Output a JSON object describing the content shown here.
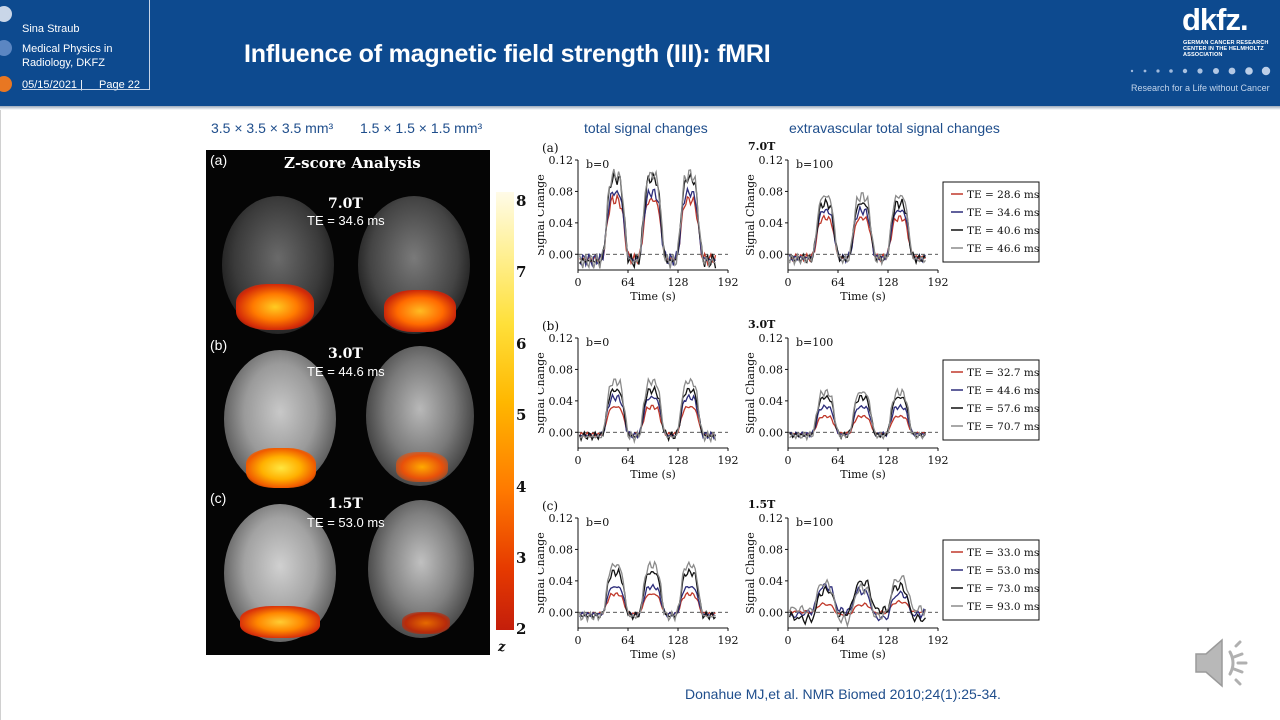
{
  "header": {
    "author": "Sina Straub",
    "department": "Medical Physics in Radiology, DKFZ",
    "date": "05/15/2021 |",
    "page": "Page 22",
    "title": "Influence of magnetic field strength (III): fMRI",
    "logo_text": "dkfz.",
    "logo_sub": "GERMAN CANCER RESEARCH CENTER IN THE HELMHOLTZ ASSOCIATION",
    "slogan": "Research for a Life without Cancer",
    "colors": {
      "header": "#0d4a8f",
      "accent_orange": "#e87722",
      "dot_blue": "#4f7fbf"
    }
  },
  "labels": {
    "res_left": "3.5 × 3.5 × 3.5 mm³",
    "res_right": "1.5 × 1.5 × 1.5 mm³",
    "total_signal": "total signal changes",
    "extravascular": "extravascular  total signal changes"
  },
  "brain_panel": {
    "title": "Z-score Analysis",
    "rows": [
      {
        "panel": "(a)",
        "field": "7.0T",
        "te": "TE = 34.6 ms"
      },
      {
        "panel": "(b)",
        "field": "3.0T",
        "te": "TE = 44.6 ms"
      },
      {
        "panel": "(c)",
        "field": "1.5T",
        "te": "TE = 53.0 ms"
      }
    ],
    "colorbar": {
      "ticks": [
        "8",
        "7",
        "6",
        "5",
        "4",
        "3",
        "2"
      ],
      "label": "z"
    }
  },
  "chart_data": [
    {
      "type": "line",
      "panel": "(a)",
      "field": "7.0T",
      "b_value": "b=0",
      "ylabel": "Signal Change",
      "xlabel": "Time (s)",
      "xticks": [
        "0",
        "64",
        "128",
        "192"
      ],
      "yticks": [
        "0.12",
        "0.08",
        "0.04",
        "0.00"
      ],
      "xlim": [
        0,
        192
      ],
      "ylim": [
        -0.02,
        0.12
      ],
      "series": [
        {
          "legend": "TE = 28.6 ms",
          "color": "#c0392b",
          "peak": 0.075
        },
        {
          "legend": "TE = 34.6 ms",
          "color": "#2c2c7a",
          "peak": 0.085
        },
        {
          "legend": "TE = 40.6 ms",
          "color": "#111111",
          "peak": 0.105
        },
        {
          "legend": "TE = 46.6 ms",
          "color": "#8a8a8a",
          "peak": 0.11
        }
      ]
    },
    {
      "type": "line",
      "panel": "",
      "field": "",
      "b_value": "b=100",
      "ylabel": "Signal Change",
      "xlabel": "Time (s)",
      "xticks": [
        "0",
        "64",
        "128",
        "192"
      ],
      "yticks": [
        "0.12",
        "0.08",
        "0.04",
        "0.00"
      ],
      "xlim": [
        0,
        192
      ],
      "ylim": [
        -0.02,
        0.12
      ],
      "series": [
        {
          "legend": "TE = 28.6 ms",
          "color": "#c0392b",
          "peak": 0.05
        },
        {
          "legend": "TE = 34.6 ms",
          "color": "#2c2c7a",
          "peak": 0.06
        },
        {
          "legend": "TE = 40.6 ms",
          "color": "#111111",
          "peak": 0.07
        },
        {
          "legend": "TE = 46.6 ms",
          "color": "#8a8a8a",
          "peak": 0.08
        }
      ]
    },
    {
      "type": "line",
      "panel": "(b)",
      "field": "3.0T",
      "b_value": "b=0",
      "ylabel": "Signal Change",
      "xlabel": "Time (s)",
      "xticks": [
        "0",
        "64",
        "128",
        "192"
      ],
      "yticks": [
        "0.12",
        "0.08",
        "0.04",
        "0.00"
      ],
      "xlim": [
        0,
        192
      ],
      "ylim": [
        -0.02,
        0.12
      ],
      "series": [
        {
          "legend": "TE = 32.7 ms",
          "color": "#c0392b",
          "peak": 0.035
        },
        {
          "legend": "TE = 44.6 ms",
          "color": "#2c2c7a",
          "peak": 0.048
        },
        {
          "legend": "TE = 57.6 ms",
          "color": "#111111",
          "peak": 0.058
        },
        {
          "legend": "TE = 70.7 ms",
          "color": "#8a8a8a",
          "peak": 0.07
        }
      ]
    },
    {
      "type": "line",
      "panel": "",
      "field": "",
      "b_value": "b=100",
      "ylabel": "Signal Change",
      "xlabel": "Time (s)",
      "xticks": [
        "0",
        "64",
        "128",
        "192"
      ],
      "yticks": [
        "0.12",
        "0.08",
        "0.04",
        "0.00"
      ],
      "xlim": [
        0,
        192
      ],
      "ylim": [
        -0.02,
        0.12
      ],
      "series": [
        {
          "legend": "TE = 32.7 ms",
          "color": "#c0392b",
          "peak": 0.022
        },
        {
          "legend": "TE = 44.6 ms",
          "color": "#2c2c7a",
          "peak": 0.035
        },
        {
          "legend": "TE = 57.6 ms",
          "color": "#111111",
          "peak": 0.048
        },
        {
          "legend": "TE = 70.7 ms",
          "color": "#8a8a8a",
          "peak": 0.055
        }
      ]
    },
    {
      "type": "line",
      "panel": "(c)",
      "field": "1.5T",
      "b_value": "b=0",
      "ylabel": "Signal Change",
      "xlabel": "Time (s)",
      "xticks": [
        "0",
        "64",
        "128",
        "192"
      ],
      "yticks": [
        "0.12",
        "0.08",
        "0.04",
        "0.00"
      ],
      "xlim": [
        0,
        192
      ],
      "ylim": [
        -0.02,
        0.12
      ],
      "series": [
        {
          "legend": "TE = 33.0 ms",
          "color": "#c0392b",
          "peak": 0.025
        },
        {
          "legend": "TE = 53.0 ms",
          "color": "#2c2c7a",
          "peak": 0.035
        },
        {
          "legend": "TE = 73.0 ms",
          "color": "#111111",
          "peak": 0.055
        },
        {
          "legend": "TE = 93.0 ms",
          "color": "#8a8a8a",
          "peak": 0.065
        }
      ]
    },
    {
      "type": "line",
      "panel": "",
      "field": "",
      "b_value": "b=100",
      "ylabel": "Signal Change",
      "xlabel": "Time (s)",
      "xticks": [
        "0",
        "64",
        "128",
        "192"
      ],
      "yticks": [
        "0.12",
        "0.08",
        "0.04",
        "0.00"
      ],
      "xlim": [
        0,
        192
      ],
      "ylim": [
        -0.02,
        0.12
      ],
      "series": [
        {
          "legend": "TE = 33.0 ms",
          "color": "#c0392b",
          "peak": 0.012
        },
        {
          "legend": "TE = 53.0 ms",
          "color": "#2c2c7a",
          "peak": 0.03
        },
        {
          "legend": "TE = 73.0 ms",
          "color": "#111111",
          "peak": 0.035
        },
        {
          "legend": "TE = 93.0 ms",
          "color": "#8a8a8a",
          "peak": 0.04
        }
      ]
    }
  ],
  "citation": "Donahue MJ,et al. NMR Biomed 2010;24(1):25-34.",
  "icons": {
    "audio": "speaker-icon"
  }
}
